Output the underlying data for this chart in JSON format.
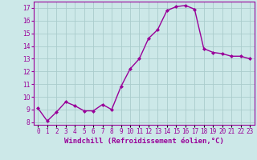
{
  "x": [
    0,
    1,
    2,
    3,
    4,
    5,
    6,
    7,
    8,
    9,
    10,
    11,
    12,
    13,
    14,
    15,
    16,
    17,
    18,
    19,
    20,
    21,
    22,
    23
  ],
  "y": [
    9.1,
    8.1,
    8.8,
    9.6,
    9.3,
    8.9,
    8.9,
    9.4,
    9.0,
    10.8,
    12.2,
    13.0,
    14.6,
    15.3,
    16.8,
    17.1,
    17.2,
    16.9,
    13.8,
    13.5,
    13.4,
    13.2,
    13.2,
    13.0
  ],
  "line_color": "#990099",
  "marker": "D",
  "marker_size": 2.0,
  "linewidth": 1.0,
  "xlim": [
    -0.5,
    23.5
  ],
  "ylim": [
    7.8,
    17.5
  ],
  "yticks": [
    8,
    9,
    10,
    11,
    12,
    13,
    14,
    15,
    16,
    17
  ],
  "xtick_labels": [
    "0",
    "1",
    "2",
    "3",
    "4",
    "5",
    "6",
    "7",
    "8",
    "9",
    "10",
    "11",
    "12",
    "13",
    "14",
    "15",
    "16",
    "17",
    "18",
    "19",
    "20",
    "21",
    "22",
    "23"
  ],
  "xlabel": "Windchill (Refroidissement éolien,°C)",
  "background_color": "#cce8e8",
  "grid_color": "#aacccc",
  "axis_fontsize": 6.5,
  "tick_fontsize": 5.5
}
